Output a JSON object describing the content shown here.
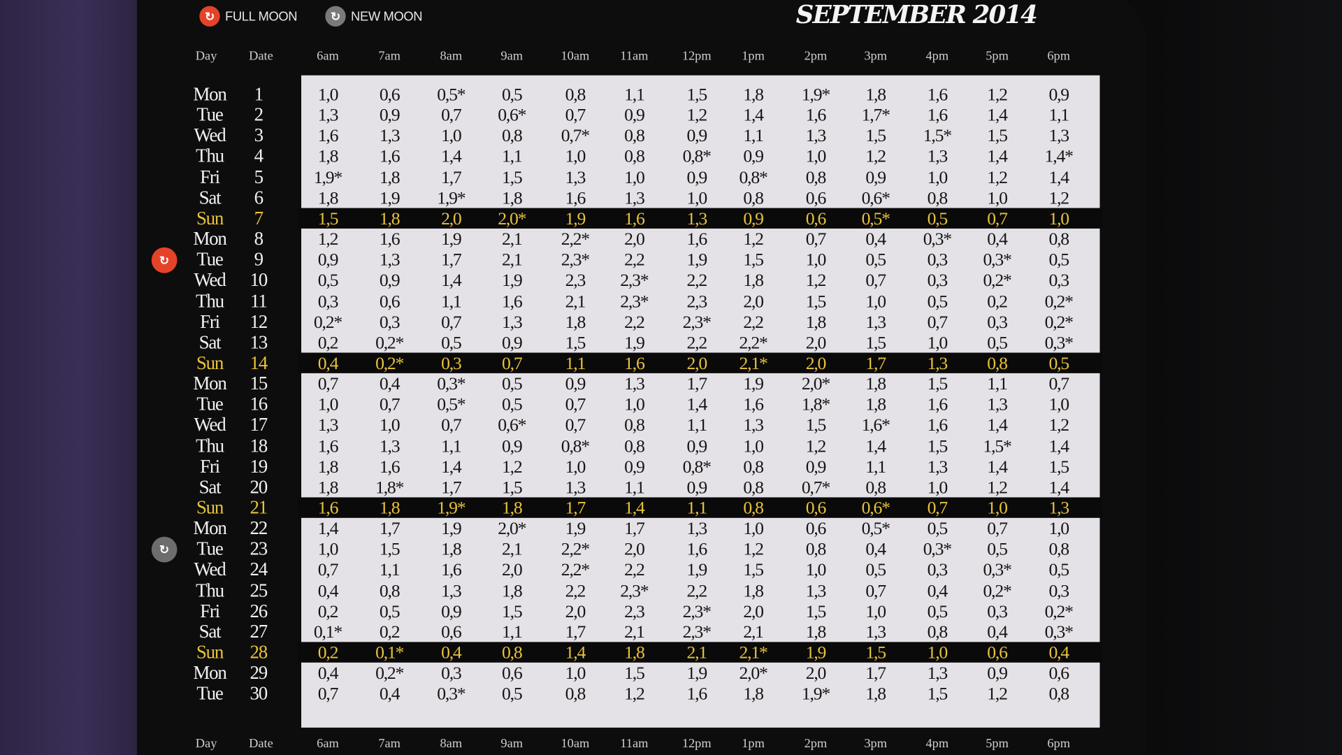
{
  "legend": {
    "full_moon_label": "FULL MOON",
    "new_moon_label": "NEW MOON",
    "full_moon_icon": "full-moon-icon",
    "new_moon_icon": "new-moon-icon",
    "full_moon_color": "#e4432a",
    "new_moon_color": "#7a7a7a"
  },
  "title": "SEPTEMBER 2014",
  "headers": {
    "day": "Day",
    "date": "Date",
    "times": [
      "6am",
      "7am",
      "8am",
      "9am",
      "10am",
      "11am",
      "12pm",
      "1pm",
      "2pm",
      "3pm",
      "4pm",
      "5pm",
      "6pm"
    ]
  },
  "colors": {
    "sunday_text": "#e8c23a",
    "table_bg": "#e4e2e7",
    "card_bg": "#0c0d0c"
  },
  "rows": [
    {
      "day": "Mon",
      "date": "1",
      "values": [
        "1,0",
        "0,6",
        "0,5*",
        "0,5",
        "0,8",
        "1,1",
        "1,5",
        "1,8",
        "1,9*",
        "1,8",
        "1,6",
        "1,2",
        "0,9"
      ]
    },
    {
      "day": "Tue",
      "date": "2",
      "values": [
        "1,3",
        "0,9",
        "0,7",
        "0,6*",
        "0,7",
        "0,9",
        "1,2",
        "1,4",
        "1,6",
        "1,7*",
        "1,6",
        "1,4",
        "1,1"
      ]
    },
    {
      "day": "Wed",
      "date": "3",
      "values": [
        "1,6",
        "1,3",
        "1,0",
        "0,8",
        "0,7*",
        "0,8",
        "0,9",
        "1,1",
        "1,3",
        "1,5",
        "1,5*",
        "1,5",
        "1,3"
      ]
    },
    {
      "day": "Thu",
      "date": "4",
      "values": [
        "1,8",
        "1,6",
        "1,4",
        "1,1",
        "1,0",
        "0,8",
        "0,8*",
        "0,9",
        "1,0",
        "1,2",
        "1,3",
        "1,4",
        "1,4*"
      ]
    },
    {
      "day": "Fri",
      "date": "5",
      "values": [
        "1,9*",
        "1,8",
        "1,7",
        "1,5",
        "1,3",
        "1,0",
        "0,9",
        "0,8*",
        "0,8",
        "0,9",
        "1,0",
        "1,2",
        "1,4"
      ]
    },
    {
      "day": "Sat",
      "date": "6",
      "values": [
        "1,8",
        "1,9",
        "1,9*",
        "1,8",
        "1,6",
        "1,3",
        "1,0",
        "0,8",
        "0,6",
        "0,6*",
        "0,8",
        "1,0",
        "1,2"
      ]
    },
    {
      "day": "Sun",
      "date": "7",
      "values": [
        "1,5",
        "1,8",
        "2,0",
        "2,0*",
        "1,9",
        "1,6",
        "1,3",
        "0,9",
        "0,6",
        "0,5*",
        "0,5",
        "0,7",
        "1,0"
      ]
    },
    {
      "day": "Mon",
      "date": "8",
      "values": [
        "1,2",
        "1,6",
        "1,9",
        "2,1",
        "2,2*",
        "2,0",
        "1,6",
        "1,2",
        "0,7",
        "0,4",
        "0,3*",
        "0,4",
        "0,8"
      ]
    },
    {
      "day": "Tue",
      "date": "9",
      "moon": "full",
      "values": [
        "0,9",
        "1,3",
        "1,7",
        "2,1",
        "2,3*",
        "2,2",
        "1,9",
        "1,5",
        "1,0",
        "0,5",
        "0,3",
        "0,3*",
        "0,5"
      ]
    },
    {
      "day": "Wed",
      "date": "10",
      "values": [
        "0,5",
        "0,9",
        "1,4",
        "1,9",
        "2,3",
        "2,3*",
        "2,2",
        "1,8",
        "1,2",
        "0,7",
        "0,3",
        "0,2*",
        "0,3"
      ]
    },
    {
      "day": "Thu",
      "date": "11",
      "values": [
        "0,3",
        "0,6",
        "1,1",
        "1,6",
        "2,1",
        "2,3*",
        "2,3",
        "2,0",
        "1,5",
        "1,0",
        "0,5",
        "0,2",
        "0,2*"
      ]
    },
    {
      "day": "Fri",
      "date": "12",
      "values": [
        "0,2*",
        "0,3",
        "0,7",
        "1,3",
        "1,8",
        "2,2",
        "2,3*",
        "2,2",
        "1,8",
        "1,3",
        "0,7",
        "0,3",
        "0,2*"
      ]
    },
    {
      "day": "Sat",
      "date": "13",
      "values": [
        "0,2",
        "0,2*",
        "0,5",
        "0,9",
        "1,5",
        "1,9",
        "2,2",
        "2,2*",
        "2,0",
        "1,5",
        "1,0",
        "0,5",
        "0,3*"
      ]
    },
    {
      "day": "Sun",
      "date": "14",
      "values": [
        "0,4",
        "0,2*",
        "0,3",
        "0,7",
        "1,1",
        "1,6",
        "2,0",
        "2,1*",
        "2,0",
        "1,7",
        "1,3",
        "0,8",
        "0,5"
      ]
    },
    {
      "day": "Mon",
      "date": "15",
      "values": [
        "0,7",
        "0,4",
        "0,3*",
        "0,5",
        "0,9",
        "1,3",
        "1,7",
        "1,9",
        "2,0*",
        "1,8",
        "1,5",
        "1,1",
        "0,7"
      ]
    },
    {
      "day": "Tue",
      "date": "16",
      "values": [
        "1,0",
        "0,7",
        "0,5*",
        "0,5",
        "0,7",
        "1,0",
        "1,4",
        "1,6",
        "1,8*",
        "1,8",
        "1,6",
        "1,3",
        "1,0"
      ]
    },
    {
      "day": "Wed",
      "date": "17",
      "values": [
        "1,3",
        "1,0",
        "0,7",
        "0,6*",
        "0,7",
        "0,8",
        "1,1",
        "1,3",
        "1,5",
        "1,6*",
        "1,6",
        "1,4",
        "1,2"
      ]
    },
    {
      "day": "Thu",
      "date": "18",
      "values": [
        "1,6",
        "1,3",
        "1,1",
        "0,9",
        "0,8*",
        "0,8",
        "0,9",
        "1,0",
        "1,2",
        "1,4",
        "1,5",
        "1,5*",
        "1,4"
      ]
    },
    {
      "day": "Fri",
      "date": "19",
      "values": [
        "1,8",
        "1,6",
        "1,4",
        "1,2",
        "1,0",
        "0,9",
        "0,8*",
        "0,8",
        "0,9",
        "1,1",
        "1,3",
        "1,4",
        "1,5"
      ]
    },
    {
      "day": "Sat",
      "date": "20",
      "values": [
        "1,8",
        "1,8*",
        "1,7",
        "1,5",
        "1,3",
        "1,1",
        "0,9",
        "0,8",
        "0,7*",
        "0,8",
        "1,0",
        "1,2",
        "1,4"
      ]
    },
    {
      "day": "Sun",
      "date": "21",
      "values": [
        "1,6",
        "1,8",
        "1,9*",
        "1,8",
        "1,7",
        "1,4",
        "1,1",
        "0,8",
        "0,6",
        "0,6*",
        "0,7",
        "1,0",
        "1,3"
      ]
    },
    {
      "day": "Mon",
      "date": "22",
      "values": [
        "1,4",
        "1,7",
        "1,9",
        "2,0*",
        "1,9",
        "1,7",
        "1,3",
        "1,0",
        "0,6",
        "0,5*",
        "0,5",
        "0,7",
        "1,0"
      ]
    },
    {
      "day": "Tue",
      "date": "23",
      "moon": "new",
      "values": [
        "1,0",
        "1,5",
        "1,8",
        "2,1",
        "2,2*",
        "2,0",
        "1,6",
        "1,2",
        "0,8",
        "0,4",
        "0,3*",
        "0,5",
        "0,8"
      ]
    },
    {
      "day": "Wed",
      "date": "24",
      "values": [
        "0,7",
        "1,1",
        "1,6",
        "2,0",
        "2,2*",
        "2,2",
        "1,9",
        "1,5",
        "1,0",
        "0,5",
        "0,3",
        "0,3*",
        "0,5"
      ]
    },
    {
      "day": "Thu",
      "date": "25",
      "values": [
        "0,4",
        "0,8",
        "1,3",
        "1,8",
        "2,2",
        "2,3*",
        "2,2",
        "1,8",
        "1,3",
        "0,7",
        "0,4",
        "0,2*",
        "0,3"
      ]
    },
    {
      "day": "Fri",
      "date": "26",
      "values": [
        "0,2",
        "0,5",
        "0,9",
        "1,5",
        "2,0",
        "2,3",
        "2,3*",
        "2,0",
        "1,5",
        "1,0",
        "0,5",
        "0,3",
        "0,2*"
      ]
    },
    {
      "day": "Sat",
      "date": "27",
      "values": [
        "0,1*",
        "0,2",
        "0,6",
        "1,1",
        "1,7",
        "2,1",
        "2,3*",
        "2,1",
        "1,8",
        "1,3",
        "0,8",
        "0,4",
        "0,3*"
      ]
    },
    {
      "day": "Sun",
      "date": "28",
      "values": [
        "0,2",
        "0,1*",
        "0,4",
        "0,8",
        "1,4",
        "1,8",
        "2,1",
        "2,1*",
        "1,9",
        "1,5",
        "1,0",
        "0,6",
        "0,4"
      ]
    },
    {
      "day": "Mon",
      "date": "29",
      "values": [
        "0,4",
        "0,2*",
        "0,3",
        "0,6",
        "1,0",
        "1,5",
        "1,9",
        "2,0*",
        "2,0",
        "1,7",
        "1,3",
        "0,9",
        "0,6"
      ]
    },
    {
      "day": "Tue",
      "date": "30",
      "values": [
        "0,7",
        "0,4",
        "0,3*",
        "0,5",
        "0,8",
        "1,2",
        "1,6",
        "1,8",
        "1,9*",
        "1,8",
        "1,5",
        "1,2",
        "0,8"
      ]
    }
  ]
}
